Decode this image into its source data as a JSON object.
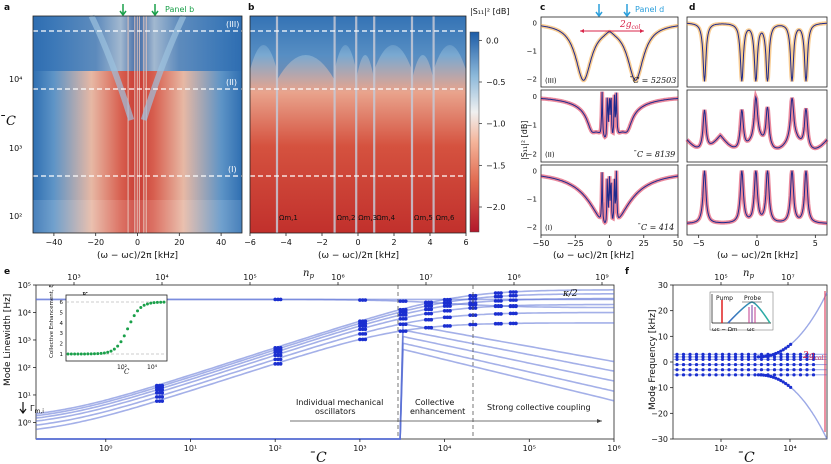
{
  "panel_letters": {
    "a": "a",
    "b": "b",
    "c": "c",
    "d": "d",
    "e": "e",
    "f": "f"
  },
  "annotations": {
    "panel_b_arrow_label": "Panel b",
    "panel_d_arrow_label": "Panel d",
    "regime_III": "(III)",
    "regime_II": "(II)",
    "regime_I": "(I)",
    "c_value_III": "̄C = 52503",
    "c_value_II": "̄C = 8139",
    "c_value_I": "̄C = 414",
    "gcol_label": "2g",
    "gcol_sub": "col",
    "gcol_label_f": "2g",
    "kappa": "κ",
    "kappa_half": "κ/2",
    "gamma_m": "Γ",
    "gamma_sub": "m,i",
    "region_1": "Individual mechanical",
    "region_1b": "oscillators",
    "region_2": "Collective",
    "region_2b": "enhancement",
    "region_3": "Strong collective coupling",
    "inset_pump": "Pump",
    "inset_probe": "Probe",
    "inset_axis_left": "ωc − Ωm",
    "inset_axis_right": "ωc",
    "omega_labels": [
      "Ωm,1",
      "Ωm,2",
      "Ωm,3",
      "Ωm,4",
      "Ωm,5",
      "Ωm,6"
    ]
  },
  "chart_data": [
    {
      "id": "a",
      "type": "heatmap",
      "title": "",
      "xlabel": "(ω − ωc)/2π [kHz]",
      "ylabel": "̄C",
      "xlim": [
        -50,
        50
      ],
      "ylim": [
        70,
        90000
      ],
      "yscale": "log",
      "xticks": [
        "−40",
        "−20",
        "0",
        "20",
        "40"
      ],
      "yticks": [
        "10²",
        "10³",
        "10⁴"
      ],
      "dashed_lines_C": [
        414,
        8139,
        52503
      ],
      "colorbar": {
        "label": "|S₁₁|² [dB]",
        "ticks": [
          "0.0",
          "−0.5",
          "−1.0",
          "−1.5",
          "−2.0"
        ],
        "range": [
          -2.3,
          0.1
        ]
      }
    },
    {
      "id": "b",
      "type": "heatmap",
      "xlabel": "(ω − ωc)/2π [kHz]",
      "xlim": [
        -6,
        6
      ],
      "xticks": [
        "−6",
        "−4",
        "−2",
        "0",
        "2",
        "4",
        "6"
      ],
      "mode_positions_kHz": [
        -4.5,
        -1.3,
        -0.1,
        0.9,
        3.0,
        4.2
      ]
    },
    {
      "id": "c",
      "type": "line",
      "xlabel": "(ω − ωc)/2π [kHz]",
      "ylabel": "|S₁₁|² [dB]",
      "xlim": [
        -50,
        50
      ],
      "ylim": [
        -2.3,
        0.2
      ],
      "xticks": [
        "−50",
        "−25",
        "0",
        "25",
        "50"
      ],
      "yticks": [
        "0",
        "−1",
        "−2"
      ],
      "rows": [
        "III",
        "II",
        "I"
      ]
    },
    {
      "id": "d",
      "type": "line",
      "xlabel": "(ω − ωc)/2π [kHz]",
      "xlim": [
        -6,
        6
      ],
      "xticks": [
        "−5",
        "0",
        "5"
      ]
    },
    {
      "id": "e",
      "type": "scatter",
      "xlabel": "̄C",
      "ylabel": "Mode Linewidth [Hz]",
      "top_xlabel": "np",
      "xscale": "log",
      "yscale": "log",
      "xlim": [
        0.15,
        1000000
      ],
      "ylim": [
        0.25,
        100000
      ],
      "xticks": [
        "10⁰",
        "10¹",
        "10²",
        "10³",
        "10⁴",
        "10⁵",
        "10⁶"
      ],
      "yticks": [
        "10⁰",
        "10¹",
        "10²",
        "10³",
        "10⁴",
        "10⁵"
      ],
      "top_ticks": [
        "10³",
        "10⁴",
        "10⁵",
        "10⁶",
        "10⁷",
        "10⁸",
        "10⁹"
      ],
      "kappa_Hz": 30000,
      "kappa_half_Hz": 15000,
      "series_x": [
        4,
        100,
        1000,
        3000,
        6000,
        10000,
        20000,
        40000,
        60000
      ],
      "inset": {
        "ylabel": "Collective Enhancement, ξ",
        "xlabel": "̄C",
        "yticks": [
          "1",
          "2",
          "3",
          "4",
          "5",
          "6"
        ],
        "xticks": [
          "10²",
          "10⁴"
        ],
        "ymax": 6
      }
    },
    {
      "id": "f",
      "type": "scatter",
      "xlabel": "̄C",
      "ylabel": "Mode Frequency [kHz]",
      "top_xlabel": "np",
      "xscale": "log",
      "ylim": [
        -30,
        30
      ],
      "yticks": [
        "30",
        "20",
        "10",
        "0",
        "−10",
        "−20",
        "−30"
      ],
      "xticks": [
        "10²",
        "10⁴"
      ],
      "top_ticks": [
        "10⁵",
        "10⁷"
      ],
      "mode_freqs_kHz": [
        3,
        2,
        1,
        -1,
        -3,
        -5
      ]
    }
  ]
}
